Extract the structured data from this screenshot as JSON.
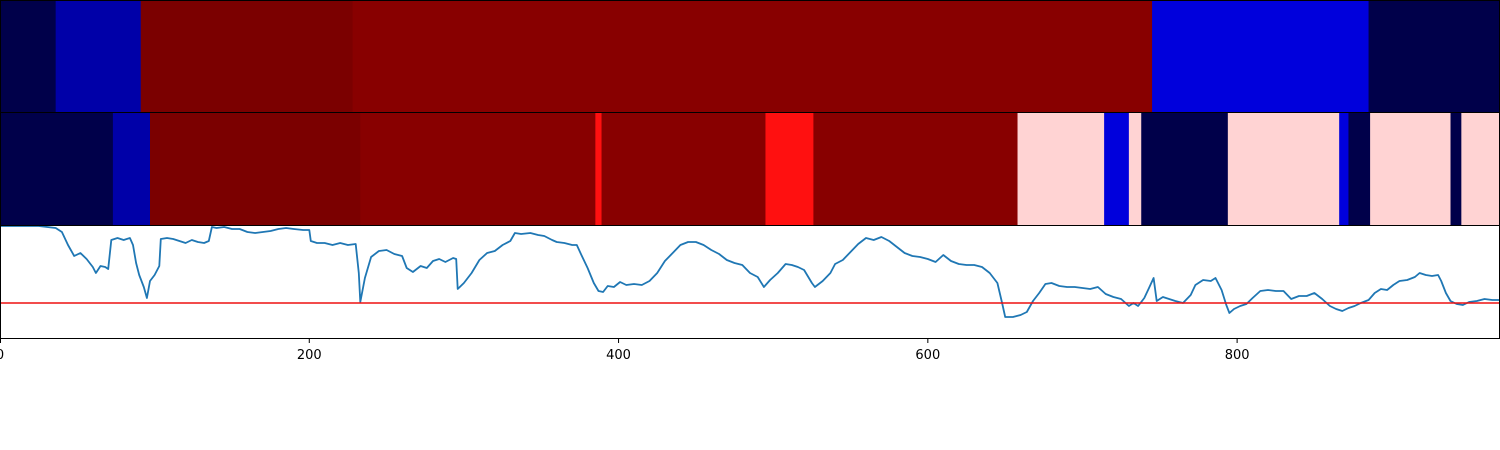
{
  "colors": {
    "dark_navy": "#00004a",
    "dark_blue": "#0000a8",
    "blue": "#0000dc",
    "dark_red_a": "#7b0000",
    "dark_red_b": "#880000",
    "red": "#ff1010",
    "pink": "#ffd3d3",
    "line": "#1f77b4",
    "threshold": "#ee1111",
    "axis": "#000000"
  },
  "chart_data": [
    {
      "type": "heatmap",
      "xlim": [
        0,
        970
      ],
      "segments": [
        {
          "start": 0,
          "end": 36,
          "color": "dark_navy"
        },
        {
          "start": 36,
          "end": 91,
          "color": "dark_blue"
        },
        {
          "start": 91,
          "end": 228,
          "color": "dark_red_a"
        },
        {
          "start": 228,
          "end": 745,
          "color": "dark_red_b"
        },
        {
          "start": 745,
          "end": 885,
          "color": "blue"
        },
        {
          "start": 885,
          "end": 970,
          "color": "dark_navy"
        }
      ]
    },
    {
      "type": "heatmap",
      "xlim": [
        0,
        970
      ],
      "segments": [
        {
          "start": 0,
          "end": 73,
          "color": "dark_navy"
        },
        {
          "start": 73,
          "end": 97,
          "color": "dark_blue"
        },
        {
          "start": 97,
          "end": 233,
          "color": "dark_red_a"
        },
        {
          "start": 233,
          "end": 385,
          "color": "dark_red_b"
        },
        {
          "start": 385,
          "end": 389,
          "color": "red"
        },
        {
          "start": 389,
          "end": 495,
          "color": "dark_red_b"
        },
        {
          "start": 495,
          "end": 526,
          "color": "red"
        },
        {
          "start": 526,
          "end": 658,
          "color": "dark_red_b"
        },
        {
          "start": 658,
          "end": 714,
          "color": "pink"
        },
        {
          "start": 714,
          "end": 730,
          "color": "blue"
        },
        {
          "start": 730,
          "end": 738,
          "color": "pink"
        },
        {
          "start": 738,
          "end": 794,
          "color": "dark_navy"
        },
        {
          "start": 794,
          "end": 866,
          "color": "pink"
        },
        {
          "start": 866,
          "end": 872,
          "color": "blue"
        },
        {
          "start": 872,
          "end": 886,
          "color": "dark_navy"
        },
        {
          "start": 886,
          "end": 938,
          "color": "pink"
        },
        {
          "start": 938,
          "end": 945,
          "color": "dark_navy"
        },
        {
          "start": 945,
          "end": 970,
          "color": "pink"
        }
      ]
    },
    {
      "type": "line",
      "xlim": [
        0,
        970
      ],
      "ylim": [
        -0.35,
        0.77
      ],
      "threshold": 0,
      "x_ticks": [
        {
          "value": 0,
          "label": "0"
        },
        {
          "value": 200,
          "label": "200"
        },
        {
          "value": 400,
          "label": "400"
        },
        {
          "value": 600,
          "label": "600"
        },
        {
          "value": 800,
          "label": "800"
        }
      ],
      "series": [
        {
          "points": [
            [
              0,
              0.77
            ],
            [
              15,
              0.77
            ],
            [
              25,
              0.77
            ],
            [
              36,
              0.75
            ],
            [
              40,
              0.71
            ],
            [
              44,
              0.58
            ],
            [
              48,
              0.47
            ],
            [
              52,
              0.5
            ],
            [
              56,
              0.44
            ],
            [
              60,
              0.36
            ],
            [
              62,
              0.3
            ],
            [
              65,
              0.37
            ],
            [
              68,
              0.36
            ],
            [
              70,
              0.34
            ],
            [
              72,
              0.63
            ],
            [
              76,
              0.65
            ],
            [
              80,
              0.63
            ],
            [
              84,
              0.65
            ],
            [
              86,
              0.58
            ],
            [
              88,
              0.4
            ],
            [
              90,
              0.28
            ],
            [
              93,
              0.16
            ],
            [
              95,
              0.05
            ],
            [
              97,
              0.22
            ],
            [
              100,
              0.28
            ],
            [
              103,
              0.37
            ],
            [
              104,
              0.64
            ],
            [
              108,
              0.65
            ],
            [
              112,
              0.64
            ],
            [
              116,
              0.62
            ],
            [
              120,
              0.6
            ],
            [
              124,
              0.63
            ],
            [
              128,
              0.61
            ],
            [
              132,
              0.6
            ],
            [
              135,
              0.62
            ],
            [
              137,
              0.76
            ],
            [
              140,
              0.75
            ],
            [
              145,
              0.76
            ],
            [
              150,
              0.74
            ],
            [
              155,
              0.74
            ],
            [
              160,
              0.71
            ],
            [
              165,
              0.7
            ],
            [
              170,
              0.71
            ],
            [
              175,
              0.72
            ],
            [
              180,
              0.74
            ],
            [
              185,
              0.75
            ],
            [
              190,
              0.74
            ],
            [
              196,
              0.73
            ],
            [
              200,
              0.73
            ],
            [
              201,
              0.62
            ],
            [
              205,
              0.6
            ],
            [
              210,
              0.6
            ],
            [
              215,
              0.58
            ],
            [
              220,
              0.6
            ],
            [
              225,
              0.58
            ],
            [
              230,
              0.59
            ],
            [
              232,
              0.3
            ],
            [
              233,
              0.01
            ],
            [
              236,
              0.25
            ],
            [
              240,
              0.46
            ],
            [
              245,
              0.52
            ],
            [
              250,
              0.53
            ],
            [
              255,
              0.49
            ],
            [
              260,
              0.47
            ],
            [
              263,
              0.35
            ],
            [
              267,
              0.31
            ],
            [
              272,
              0.37
            ],
            [
              276,
              0.35
            ],
            [
              280,
              0.42
            ],
            [
              284,
              0.44
            ],
            [
              288,
              0.41
            ],
            [
              293,
              0.45
            ],
            [
              295,
              0.44
            ],
            [
              296,
              0.14
            ],
            [
              300,
              0.2
            ],
            [
              305,
              0.3
            ],
            [
              310,
              0.43
            ],
            [
              315,
              0.5
            ],
            [
              320,
              0.52
            ],
            [
              325,
              0.58
            ],
            [
              330,
              0.62
            ],
            [
              333,
              0.7
            ],
            [
              337,
              0.69
            ],
            [
              343,
              0.7
            ],
            [
              348,
              0.68
            ],
            [
              352,
              0.67
            ],
            [
              357,
              0.63
            ],
            [
              360,
              0.61
            ],
            [
              365,
              0.6
            ],
            [
              370,
              0.58
            ],
            [
              373,
              0.58
            ],
            [
              376,
              0.48
            ],
            [
              380,
              0.35
            ],
            [
              384,
              0.2
            ],
            [
              387,
              0.12
            ],
            [
              390,
              0.11
            ],
            [
              393,
              0.17
            ],
            [
              397,
              0.16
            ],
            [
              401,
              0.21
            ],
            [
              405,
              0.18
            ],
            [
              410,
              0.19
            ],
            [
              415,
              0.18
            ],
            [
              420,
              0.22
            ],
            [
              425,
              0.3
            ],
            [
              430,
              0.42
            ],
            [
              435,
              0.5
            ],
            [
              440,
              0.58
            ],
            [
              445,
              0.61
            ],
            [
              450,
              0.61
            ],
            [
              455,
              0.58
            ],
            [
              460,
              0.53
            ],
            [
              465,
              0.49
            ],
            [
              470,
              0.43
            ],
            [
              475,
              0.4
            ],
            [
              480,
              0.38
            ],
            [
              485,
              0.3
            ],
            [
              490,
              0.26
            ],
            [
              494,
              0.16
            ],
            [
              498,
              0.23
            ],
            [
              503,
              0.3
            ],
            [
              508,
              0.39
            ],
            [
              512,
              0.38
            ],
            [
              516,
              0.36
            ],
            [
              520,
              0.33
            ],
            [
              525,
              0.2
            ],
            [
              527,
              0.16
            ],
            [
              532,
              0.22
            ],
            [
              537,
              0.3
            ],
            [
              540,
              0.39
            ],
            [
              545,
              0.43
            ],
            [
              550,
              0.51
            ],
            [
              555,
              0.59
            ],
            [
              560,
              0.65
            ],
            [
              565,
              0.63
            ],
            [
              570,
              0.66
            ],
            [
              575,
              0.62
            ],
            [
              580,
              0.56
            ],
            [
              585,
              0.5
            ],
            [
              590,
              0.47
            ],
            [
              595,
              0.46
            ],
            [
              600,
              0.44
            ],
            [
              605,
              0.41
            ],
            [
              610,
              0.48
            ],
            [
              615,
              0.42
            ],
            [
              620,
              0.39
            ],
            [
              625,
              0.38
            ],
            [
              630,
              0.38
            ],
            [
              635,
              0.36
            ],
            [
              640,
              0.3
            ],
            [
              645,
              0.2
            ],
            [
              648,
              0.0
            ],
            [
              650,
              -0.14
            ],
            [
              655,
              -0.14
            ],
            [
              660,
              -0.12
            ],
            [
              664,
              -0.09
            ],
            [
              668,
              0.02
            ],
            [
              672,
              0.1
            ],
            [
              676,
              0.19
            ],
            [
              680,
              0.2
            ],
            [
              685,
              0.17
            ],
            [
              690,
              0.16
            ],
            [
              695,
              0.16
            ],
            [
              700,
              0.15
            ],
            [
              705,
              0.14
            ],
            [
              710,
              0.16
            ],
            [
              715,
              0.09
            ],
            [
              720,
              0.06
            ],
            [
              725,
              0.04
            ],
            [
              730,
              -0.03
            ],
            [
              733,
              0.0
            ],
            [
              736,
              -0.03
            ],
            [
              740,
              0.05
            ],
            [
              743,
              0.15
            ],
            [
              746,
              0.25
            ],
            [
              748,
              0.02
            ],
            [
              752,
              0.06
            ],
            [
              756,
              0.04
            ],
            [
              760,
              0.02
            ],
            [
              765,
              0.0
            ],
            [
              770,
              0.08
            ],
            [
              773,
              0.18
            ],
            [
              778,
              0.23
            ],
            [
              783,
              0.22
            ],
            [
              786,
              0.25
            ],
            [
              790,
              0.13
            ],
            [
              793,
              -0.02
            ],
            [
              795,
              -0.1
            ],
            [
              798,
              -0.06
            ],
            [
              802,
              -0.03
            ],
            [
              806,
              -0.01
            ],
            [
              810,
              0.05
            ],
            [
              815,
              0.12
            ],
            [
              820,
              0.13
            ],
            [
              825,
              0.12
            ],
            [
              830,
              0.12
            ],
            [
              835,
              0.04
            ],
            [
              840,
              0.07
            ],
            [
              845,
              0.07
            ],
            [
              850,
              0.1
            ],
            [
              855,
              0.04
            ],
            [
              860,
              -0.03
            ],
            [
              864,
              -0.06
            ],
            [
              868,
              -0.08
            ],
            [
              872,
              -0.05
            ],
            [
              876,
              -0.03
            ],
            [
              880,
              0.0
            ],
            [
              885,
              0.03
            ],
            [
              889,
              0.1
            ],
            [
              893,
              0.14
            ],
            [
              897,
              0.13
            ],
            [
              901,
              0.18
            ],
            [
              905,
              0.22
            ],
            [
              910,
              0.23
            ],
            [
              915,
              0.26
            ],
            [
              918,
              0.3
            ],
            [
              922,
              0.28
            ],
            [
              926,
              0.27
            ],
            [
              930,
              0.28
            ],
            [
              932,
              0.22
            ],
            [
              935,
              0.1
            ],
            [
              938,
              0.02
            ],
            [
              942,
              -0.01
            ],
            [
              946,
              -0.02
            ],
            [
              950,
              0.01
            ],
            [
              955,
              0.02
            ],
            [
              960,
              0.04
            ],
            [
              965,
              0.03
            ],
            [
              970,
              0.03
            ]
          ]
        }
      ]
    }
  ]
}
